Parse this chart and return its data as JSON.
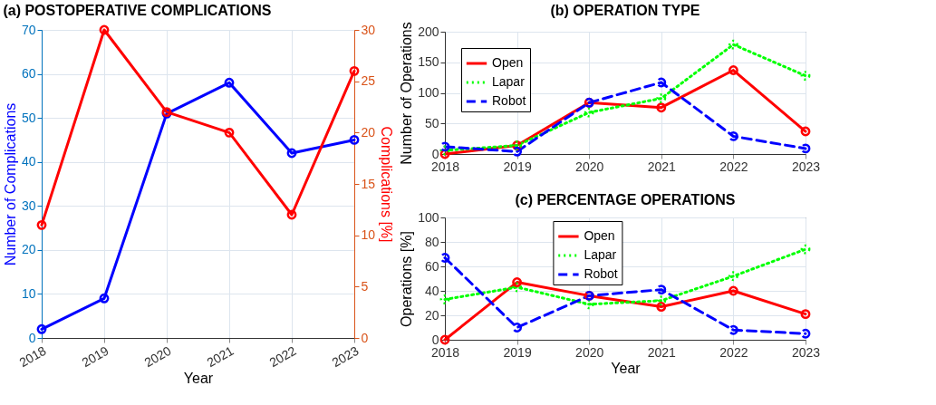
{
  "chart_data": [
    {
      "type": "line",
      "title": "(a) POSTOPERATIVE COMPLICATIONS",
      "xlabel": "Year",
      "ylabel": "Number of Complications",
      "y2label": "Complications [%]",
      "categories": [
        "2018",
        "2019",
        "2020",
        "2021",
        "2022",
        "2023"
      ],
      "series": [
        {
          "color": "#0000ff",
          "values": [
            2,
            9,
            51,
            58,
            42,
            45
          ]
        },
        {
          "color": "#ff0000",
          "axis": "y2",
          "values": [
            11,
            30,
            22,
            20,
            12,
            26
          ]
        }
      ],
      "ylim": [
        0,
        70
      ],
      "yticks": [
        0,
        10,
        20,
        30,
        40,
        50,
        60,
        70
      ],
      "y2lim": [
        0,
        30
      ],
      "y2ticks": [
        0,
        5,
        10,
        15,
        20,
        25,
        30
      ],
      "grid": true,
      "marker": "circle",
      "line_style": "solid"
    },
    {
      "type": "line",
      "title": "(b) OPERATION TYPE",
      "ylabel": "Number of Operations",
      "categories": [
        "2018",
        "2019",
        "2020",
        "2021",
        "2022",
        "2023"
      ],
      "series": [
        {
          "name": "Open",
          "color": "#ff0000",
          "line_style": "solid",
          "values": [
            0,
            14,
            84,
            76,
            137,
            37
          ]
        },
        {
          "name": "Lapar",
          "color": "#00ff00",
          "line_style": "dotted",
          "values": [
            6,
            14,
            68,
            91,
            179,
            128
          ]
        },
        {
          "name": "Robot",
          "color": "#0000ff",
          "line_style": "dashed",
          "values": [
            12,
            4,
            84,
            117,
            29,
            9
          ]
        }
      ],
      "ylim": [
        0,
        200
      ],
      "yticks": [
        0,
        50,
        100,
        150,
        200
      ],
      "grid": true,
      "legend": "top left",
      "marker": "circle"
    },
    {
      "type": "line",
      "title": "(c) PERCENTAGE OPERATIONS",
      "xlabel": "Year",
      "ylabel": "Operations [%]",
      "categories": [
        "2018",
        "2019",
        "2020",
        "2021",
        "2022",
        "2023"
      ],
      "series": [
        {
          "name": "Open",
          "color": "#ff0000",
          "line_style": "solid",
          "values": [
            0,
            47,
            36,
            27,
            40,
            21
          ]
        },
        {
          "name": "Lapar",
          "color": "#00ff00",
          "line_style": "dotted",
          "values": [
            33,
            43,
            29,
            32,
            52,
            74
          ]
        },
        {
          "name": "Robot",
          "color": "#0000ff",
          "line_style": "dashed",
          "values": [
            67,
            10,
            36,
            41,
            8,
            5
          ]
        }
      ],
      "ylim": [
        0,
        100
      ],
      "yticks": [
        0,
        20,
        40,
        60,
        80,
        100
      ],
      "grid": true,
      "legend": "top",
      "marker": "circle"
    }
  ]
}
